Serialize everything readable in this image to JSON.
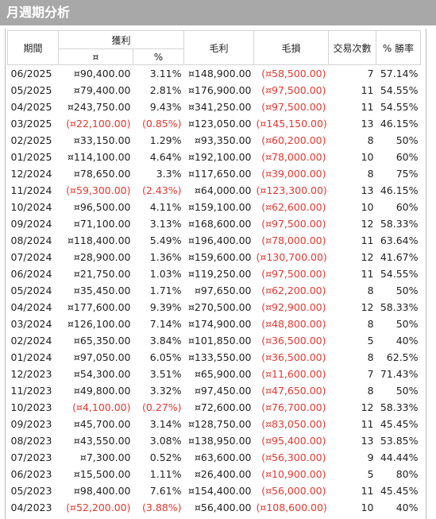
{
  "header": {
    "title": "月週期分析"
  },
  "table": {
    "columns": [
      "期間",
      "獲利",
      "毛利",
      "毛損",
      "交易次數",
      "% 勝率"
    ],
    "subcolumns": [
      "¤",
      "%"
    ],
    "rows": [
      [
        "06/2025",
        "¤90,400.00",
        "3.11%",
        "¤148,900.00",
        "(¤58,500.00)",
        "7",
        "57.14%"
      ],
      [
        "05/2025",
        "¤79,400.00",
        "2.81%",
        "¤176,900.00",
        "(¤97,500.00)",
        "11",
        "54.55%"
      ],
      [
        "04/2025",
        "¤243,750.00",
        "9.43%",
        "¤341,250.00",
        "(¤97,500.00)",
        "11",
        "54.55%"
      ],
      [
        "03/2025",
        "(¤22,100.00)",
        "(0.85%)",
        "¤123,050.00",
        "(¤145,150.00)",
        "13",
        "46.15%"
      ],
      [
        "02/2025",
        "¤33,150.00",
        "1.29%",
        "¤93,350.00",
        "(¤60,200.00)",
        "8",
        "50%"
      ],
      [
        "01/2025",
        "¤114,100.00",
        "4.64%",
        "¤192,100.00",
        "(¤78,000.00)",
        "10",
        "60%"
      ],
      [
        "12/2024",
        "¤78,650.00",
        "3.3%",
        "¤117,650.00",
        "(¤39,000.00)",
        "8",
        "75%"
      ],
      [
        "11/2024",
        "(¤59,300.00)",
        "(2.43%)",
        "¤64,000.00",
        "(¤123,300.00)",
        "13",
        "46.15%"
      ],
      [
        "10/2024",
        "¤96,500.00",
        "4.11%",
        "¤159,100.00",
        "(¤62,600.00)",
        "10",
        "60%"
      ],
      [
        "09/2024",
        "¤71,100.00",
        "3.13%",
        "¤168,600.00",
        "(¤97,500.00)",
        "12",
        "58.33%"
      ],
      [
        "08/2024",
        "¤118,400.00",
        "5.49%",
        "¤196,400.00",
        "(¤78,000.00)",
        "11",
        "63.64%"
      ],
      [
        "07/2024",
        "¤28,900.00",
        "1.36%",
        "¤159,600.00",
        "(¤130,700.00)",
        "12",
        "41.67%"
      ],
      [
        "06/2024",
        "¤21,750.00",
        "1.03%",
        "¤119,250.00",
        "(¤97,500.00)",
        "11",
        "54.55%"
      ],
      [
        "05/2024",
        "¤35,450.00",
        "1.71%",
        "¤97,650.00",
        "(¤62,200.00)",
        "8",
        "50%"
      ],
      [
        "04/2024",
        "¤177,600.00",
        "9.39%",
        "¤270,500.00",
        "(¤92,900.00)",
        "12",
        "58.33%"
      ],
      [
        "03/2024",
        "¤126,100.00",
        "7.14%",
        "¤174,900.00",
        "(¤48,800.00)",
        "8",
        "50%"
      ],
      [
        "02/2024",
        "¤65,350.00",
        "3.84%",
        "¤101,850.00",
        "(¤36,500.00)",
        "5",
        "40%"
      ],
      [
        "01/2024",
        "¤97,050.00",
        "6.05%",
        "¤133,550.00",
        "(¤36,500.00)",
        "8",
        "62.5%"
      ],
      [
        "12/2023",
        "¤54,300.00",
        "3.51%",
        "¤65,900.00",
        "(¤11,600.00)",
        "7",
        "71.43%"
      ],
      [
        "11/2023",
        "¤49,800.00",
        "3.32%",
        "¤97,450.00",
        "(¤47,650.00)",
        "8",
        "50%"
      ],
      [
        "10/2023",
        "(¤4,100.00)",
        "(0.27%)",
        "¤72,600.00",
        "(¤76,700.00)",
        "12",
        "58.33%"
      ],
      [
        "09/2023",
        "¤45,700.00",
        "3.14%",
        "¤128,750.00",
        "(¤83,050.00)",
        "11",
        "45.45%"
      ],
      [
        "08/2023",
        "¤43,550.00",
        "3.08%",
        "¤138,950.00",
        "(¤95,400.00)",
        "13",
        "53.85%"
      ],
      [
        "07/2023",
        "¤7,300.00",
        "0.52%",
        "¤63,600.00",
        "(¤56,300.00)",
        "9",
        "44.44%"
      ],
      [
        "06/2023",
        "¤15,500.00",
        "1.11%",
        "¤26,400.00",
        "(¤10,900.00)",
        "5",
        "80%"
      ],
      [
        "05/2023",
        "¤98,400.00",
        "7.61%",
        "¤154,400.00",
        "(¤56,000.00)",
        "11",
        "45.45%"
      ],
      [
        "04/2023",
        "(¤52,200.00)",
        "(3.88%)",
        "¤56,400.00",
        "(¤108,600.00)",
        "10",
        "40%"
      ]
    ]
  }
}
